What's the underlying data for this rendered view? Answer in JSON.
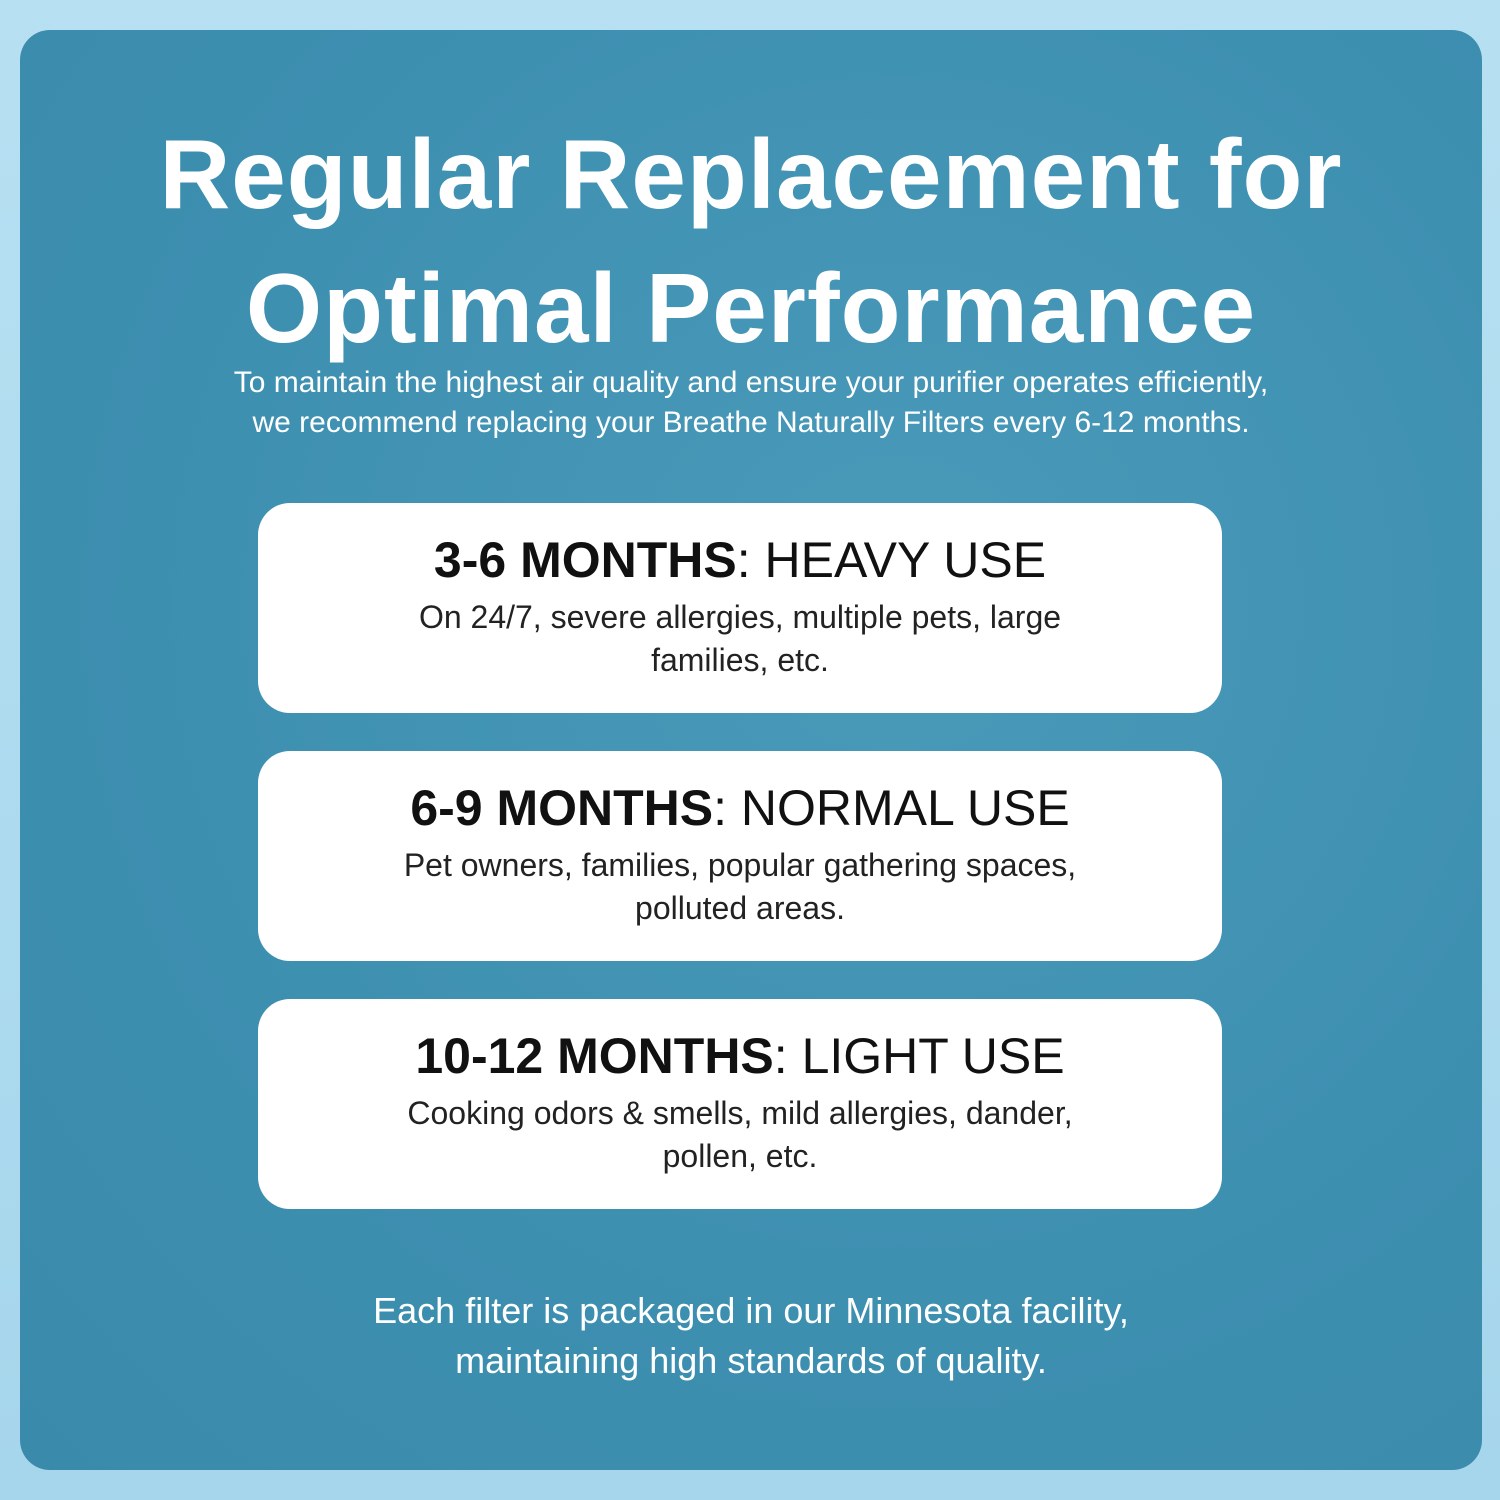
{
  "header": {
    "title": [
      "Regular Replacement for",
      "Optimal Performance"
    ],
    "intro": [
      "To maintain the highest air quality and ensure your purifier operates efficiently,",
      "we recommend replacing your Breathe Naturally Filters every 6-12 months."
    ]
  },
  "cards": [
    {
      "period": "3-6 MONTHS",
      "usage": ": HEAVY  USE",
      "description": [
        "On 24/7, severe allergies, multiple pets, large",
        "families, etc."
      ]
    },
    {
      "period": "6-9 MONTHS",
      "usage": ": NORMAL USE",
      "description": [
        "Pet owners, families, popular gathering spaces,",
        "polluted areas."
      ]
    },
    {
      "period": "10-12 MONTHS",
      "usage": ": LIGHT USE",
      "description": [
        "Cooking odors & smells, mild allergies, dander,",
        "pollen, etc."
      ]
    }
  ],
  "footer": [
    "Each filter is packaged in our Minnesota facility,",
    "maintaining high standards of quality."
  ]
}
